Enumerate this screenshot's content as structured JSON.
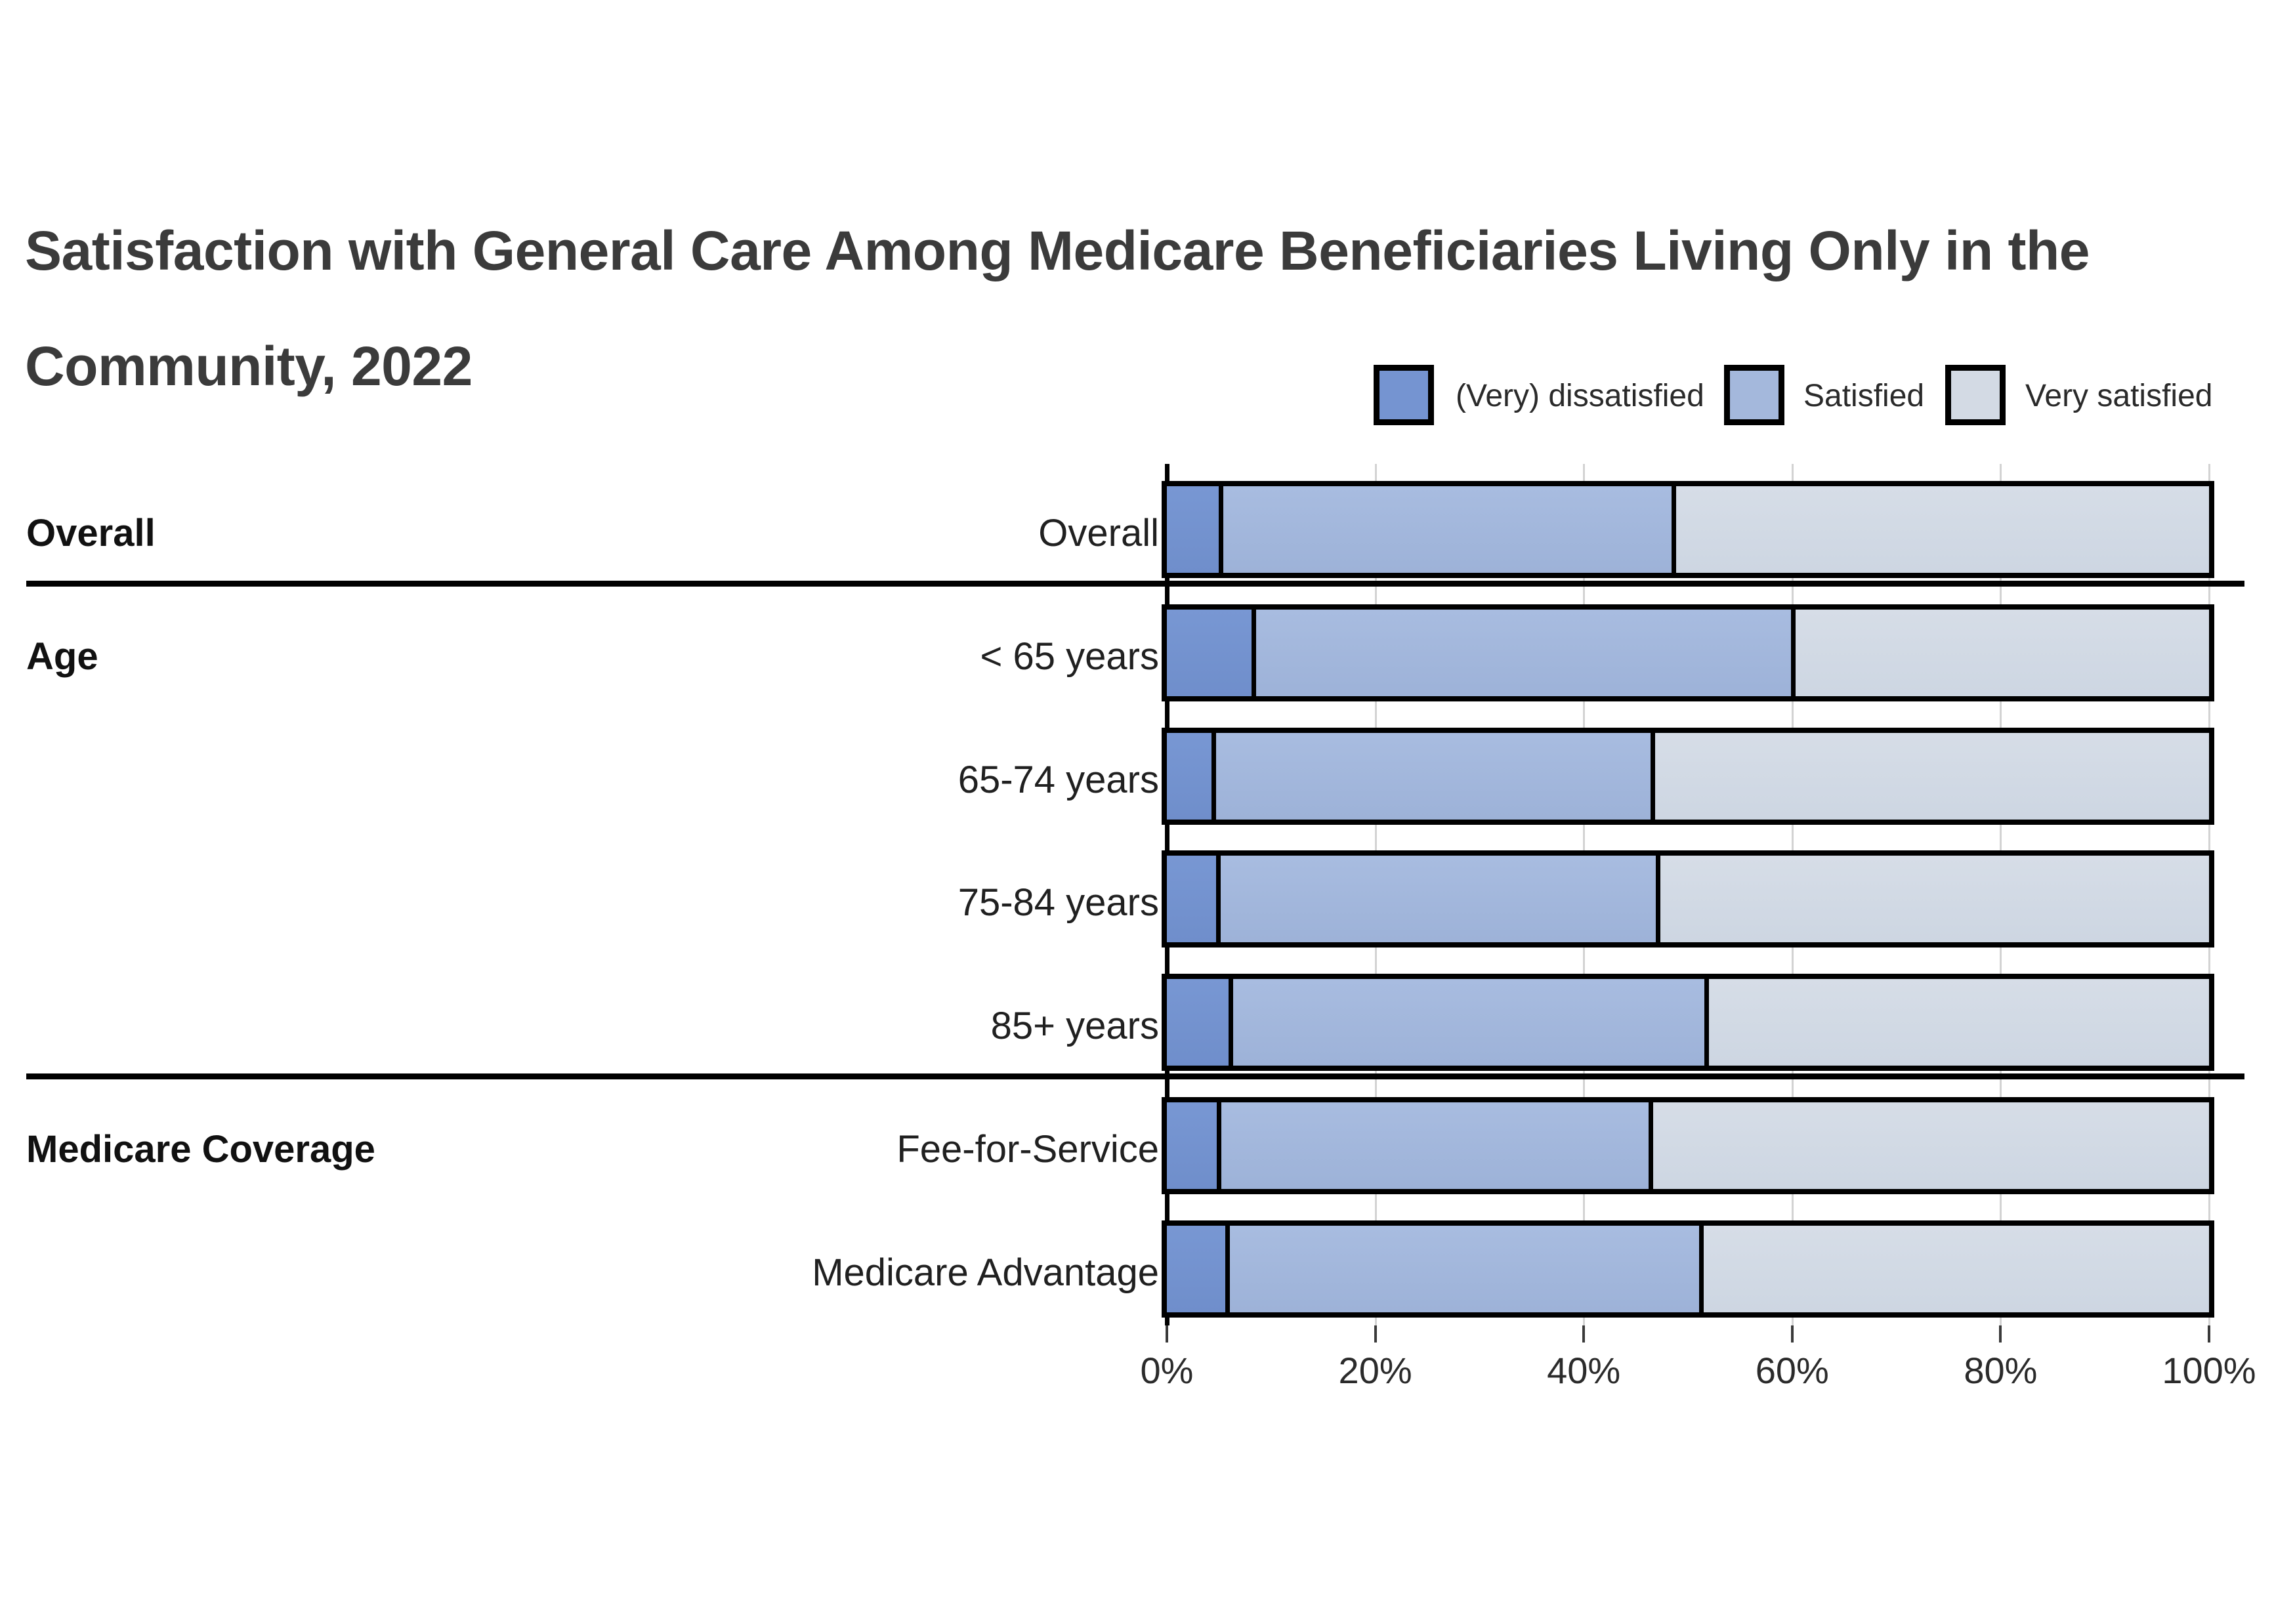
{
  "title": {
    "line1": "Satisfaction with General Care Among Medicare Beneficiaries Living Only in the",
    "line2": "Community, 2022"
  },
  "legend": {
    "items": [
      {
        "label": "(Very) dissatisfied",
        "color": "#7594d1"
      },
      {
        "label": "Satisfied",
        "color": "#a4b8dc"
      },
      {
        "label": "Very satisfied",
        "color": "#d3dae4"
      }
    ]
  },
  "chart_data": {
    "type": "bar",
    "stacked": true,
    "orientation": "horizontal",
    "title": "Satisfaction with General Care Among Medicare Beneficiaries Living Only in the Community, 2022",
    "unit": "percent",
    "x_axis": {
      "min": 0,
      "max": 100,
      "tick_labels": [
        "0%",
        "20%",
        "40%",
        "60%",
        "80%",
        "100%"
      ],
      "tick_values": [
        0,
        20,
        40,
        60,
        80,
        100
      ],
      "gridlines": [
        20,
        40,
        60,
        80,
        100
      ]
    },
    "series_names": [
      "(Very) dissatisfied",
      "Satisfied",
      "Very satisfied"
    ],
    "series_colors": [
      "#7594d1",
      "#a4b8dc",
      "#d3dae4"
    ],
    "groups": [
      {
        "label": "Overall",
        "rows": [
          {
            "category": "Overall",
            "values": [
              5.0,
              43.4,
              51.6
            ]
          }
        ]
      },
      {
        "label": "Age",
        "rows": [
          {
            "category": "< 65 years",
            "values": [
              8.1,
              51.8,
              40.1
            ]
          },
          {
            "category": "65-74 years",
            "values": [
              4.3,
              42.1,
              53.6
            ]
          },
          {
            "category": "75-84 years",
            "values": [
              4.7,
              42.2,
              53.1
            ]
          },
          {
            "category": "85+ years",
            "values": [
              5.9,
              45.7,
              48.4
            ]
          }
        ]
      },
      {
        "label": "Medicare Coverage",
        "rows": [
          {
            "category": "Fee-for-Service",
            "values": [
              4.8,
              41.4,
              53.8
            ]
          },
          {
            "category": "Medicare Advantage",
            "values": [
              5.6,
              45.5,
              48.9
            ]
          }
        ]
      }
    ]
  }
}
